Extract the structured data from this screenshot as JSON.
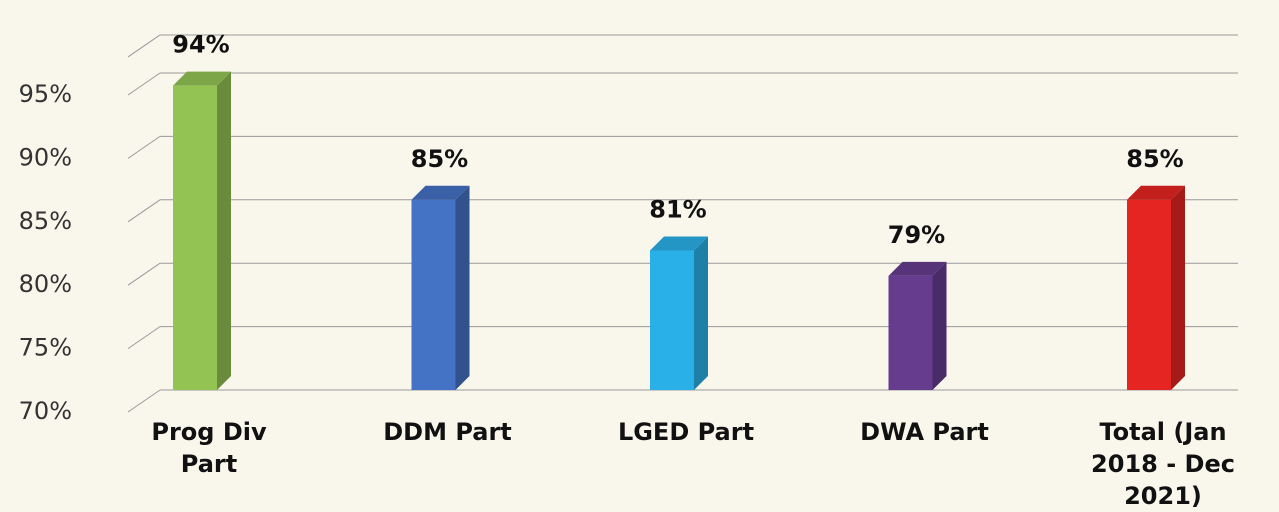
{
  "chart_data": {
    "type": "bar3d",
    "categories": [
      "Prog Div Part",
      "DDM Part",
      "LGED Part",
      "DWA Part",
      "Total (Jan 2018 - Dec 2021)"
    ],
    "values": [
      94,
      85,
      81,
      79,
      85
    ],
    "value_labels": [
      "94%",
      "85%",
      "81%",
      "79%",
      "85%"
    ],
    "colors": [
      "#92c353",
      "#4472c4",
      "#29b0e8",
      "#663c8f",
      "#e52521"
    ],
    "ylim": [
      70,
      98
    ],
    "yticks": [
      {
        "value": 70,
        "label": "70%"
      },
      {
        "value": 75,
        "label": "75%"
      },
      {
        "value": 80,
        "label": "80%"
      },
      {
        "value": 85,
        "label": "85%"
      },
      {
        "value": 90,
        "label": "90%"
      },
      {
        "value": 95,
        "label": "95%"
      }
    ],
    "grid": true
  }
}
